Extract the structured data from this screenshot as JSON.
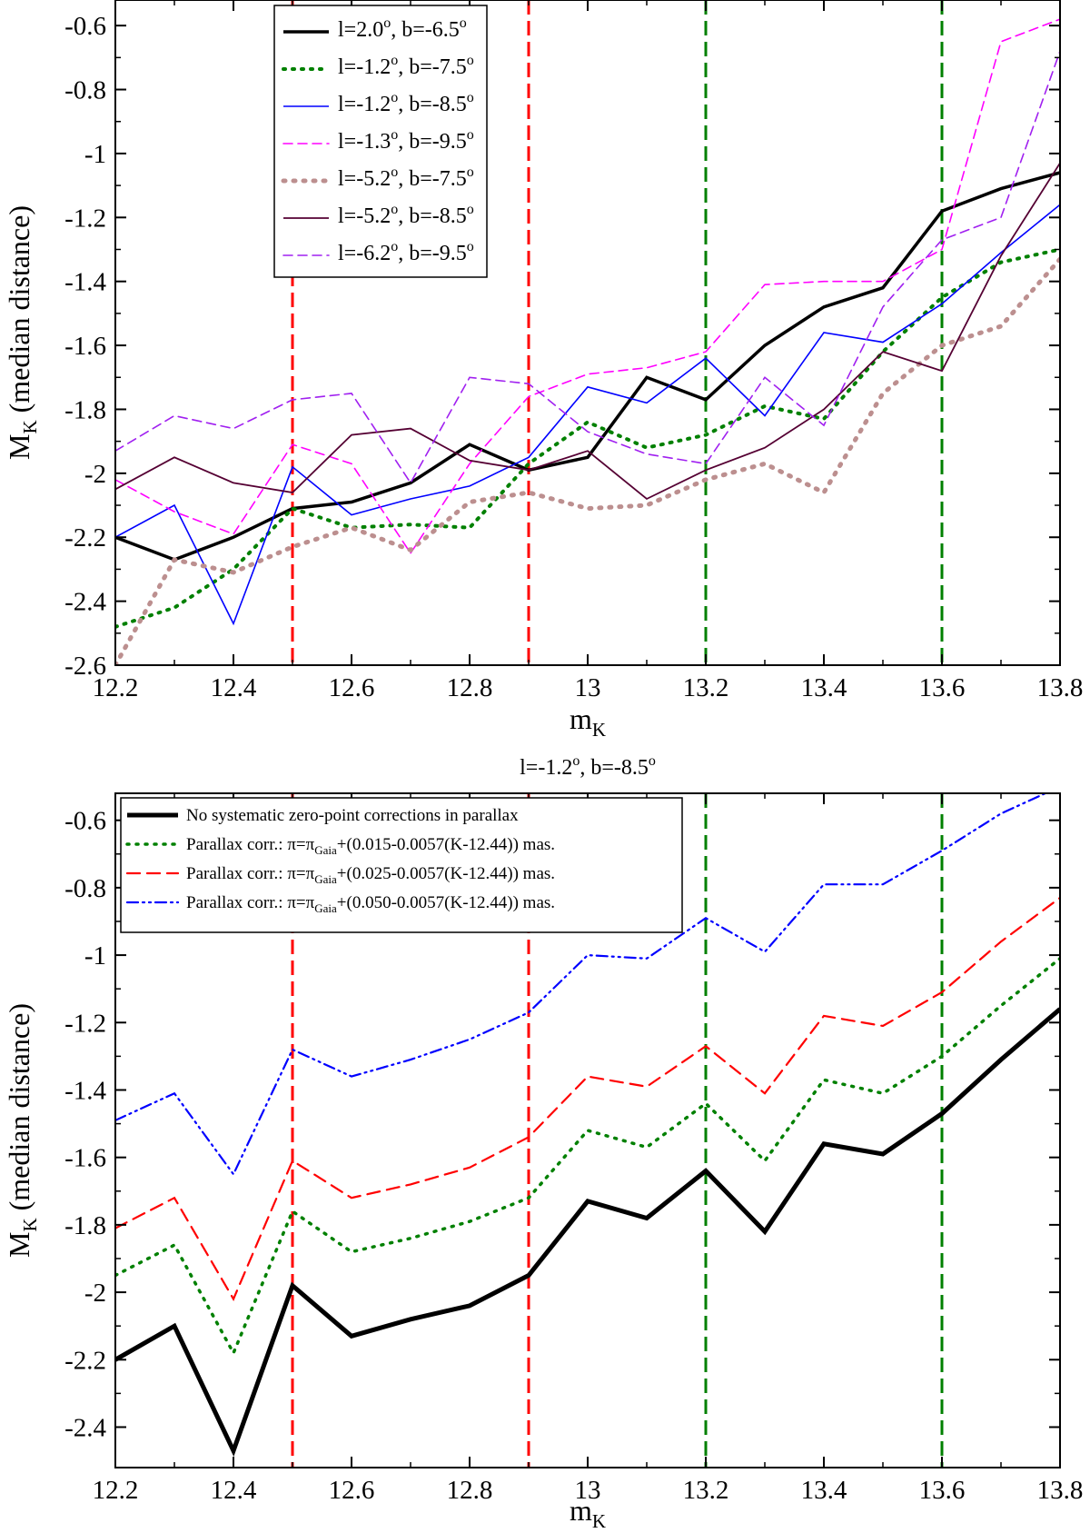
{
  "panels": [
    {
      "title": "",
      "xlabel": {
        "main": "m",
        "sub": "K"
      },
      "ylabel": {
        "main": "M",
        "sub": "K",
        "rest": " (median distance)"
      },
      "xlim": [
        12.2,
        13.8
      ],
      "ylim": [
        -2.6,
        -0.52
      ],
      "xticks": [
        "12.2",
        "12.4",
        "12.6",
        "12.8",
        "13",
        "13.2",
        "13.4",
        "13.6",
        "13.8"
      ],
      "yticks": [
        "-2.6",
        "-2.4",
        "-2.2",
        "-2",
        "-1.8",
        "-1.6",
        "-1.4",
        "-1.2",
        "-1",
        "-0.8",
        "-0.6"
      ],
      "vlines": [
        {
          "x": 12.5,
          "color": "#ff0000"
        },
        {
          "x": 12.9,
          "color": "#ff0000"
        },
        {
          "x": 13.2,
          "color": "#008000"
        },
        {
          "x": 13.6,
          "color": "#008000"
        }
      ],
      "legend": [
        {
          "l": "2.0",
          "b": "-6.5"
        },
        {
          "l": "-1.2",
          "b": "-7.5"
        },
        {
          "l": "-1.2",
          "b": "-8.5"
        },
        {
          "l": "-1.3",
          "b": "-9.5"
        },
        {
          "l": "-5.2",
          "b": "-7.5"
        },
        {
          "l": "-5.2",
          "b": "-8.5"
        },
        {
          "l": "-6.2",
          "b": "-9.5"
        }
      ],
      "series_styles": [
        {
          "color": "#000000",
          "width": 3.5,
          "dash": ""
        },
        {
          "color": "#008000",
          "width": 4,
          "dash": "2,8"
        },
        {
          "color": "#0000ff",
          "width": 1.6,
          "dash": ""
        },
        {
          "color": "#ff00ff",
          "width": 1.6,
          "dash": "10,6"
        },
        {
          "color": "#bc8f8f",
          "width": 5,
          "dash": "2,9"
        },
        {
          "color": "#550033",
          "width": 1.8,
          "dash": ""
        },
        {
          "color": "#a020f0",
          "width": 1.6,
          "dash": "10,6"
        }
      ]
    },
    {
      "title": {
        "l": "-1.2",
        "b": "-8.5"
      },
      "xlabel": {
        "main": "m",
        "sub": "K"
      },
      "ylabel": {
        "main": "M",
        "sub": "K",
        "rest": " (median distance)"
      },
      "xlim": [
        12.2,
        13.8
      ],
      "ylim": [
        -2.52,
        -0.52
      ],
      "xticks": [
        "12.2",
        "12.4",
        "12.6",
        "12.8",
        "13",
        "13.2",
        "13.4",
        "13.6",
        "13.8"
      ],
      "yticks": [
        "-2.4",
        "-2.2",
        "-2",
        "-1.8",
        "-1.6",
        "-1.4",
        "-1.2",
        "-1",
        "-0.8",
        "-0.6"
      ],
      "vlines": [
        {
          "x": 12.5,
          "color": "#ff0000"
        },
        {
          "x": 12.9,
          "color": "#ff0000"
        },
        {
          "x": 13.2,
          "color": "#008000"
        },
        {
          "x": 13.6,
          "color": "#008000"
        }
      ],
      "legend": [
        {
          "text": "No systematic zero-point corrections in parallax"
        },
        {
          "pre": "Parallax corr.: π=π",
          "sub": "Gaia",
          "post": "+(0.015-0.0057(K-12.44)) mas."
        },
        {
          "pre": "Parallax corr.: π=π",
          "sub": "Gaia",
          "post": "+(0.025-0.0057(K-12.44)) mas."
        },
        {
          "pre": "Parallax corr.: π=π",
          "sub": "Gaia",
          "post": "+(0.050-0.0057(K-12.44)) mas."
        }
      ],
      "series_styles": [
        {
          "color": "#000000",
          "width": 5,
          "dash": ""
        },
        {
          "color": "#008000",
          "width": 3.5,
          "dash": "2,8"
        },
        {
          "color": "#ff0000",
          "width": 2.2,
          "dash": "14,8"
        },
        {
          "color": "#0000ff",
          "width": 2.2,
          "dash": "12,5,2,5,2,5"
        }
      ]
    }
  ],
  "chart_data": [
    {
      "type": "line",
      "title": "",
      "xlabel": "mK",
      "ylabel": "MK (median distance)",
      "xlim": [
        12.2,
        13.8
      ],
      "ylim": [
        -2.6,
        -0.52
      ],
      "x": [
        12.2,
        12.3,
        12.4,
        12.5,
        12.6,
        12.7,
        12.8,
        12.9,
        13.0,
        13.1,
        13.2,
        13.3,
        13.4,
        13.5,
        13.6,
        13.7,
        13.8
      ],
      "series": [
        {
          "name": "l=2.0o, b=-6.5o",
          "values": [
            -2.2,
            -2.27,
            -2.2,
            -2.11,
            -2.09,
            -2.03,
            -1.91,
            -1.99,
            -1.95,
            -1.7,
            -1.77,
            -1.6,
            -1.48,
            -1.42,
            -1.18,
            -1.11,
            -1.06
          ]
        },
        {
          "name": "l=-1.2o, b=-7.5o",
          "values": [
            -2.48,
            -2.42,
            -2.3,
            -2.11,
            -2.17,
            -2.16,
            -2.17,
            -1.97,
            -1.84,
            -1.92,
            -1.88,
            -1.79,
            -1.83,
            -1.62,
            -1.45,
            -1.34,
            -1.3
          ]
        },
        {
          "name": "l=-1.2o, b=-8.5o",
          "values": [
            -2.2,
            -2.1,
            -2.47,
            -1.98,
            -2.13,
            -2.08,
            -2.04,
            -1.95,
            -1.73,
            -1.78,
            -1.64,
            -1.82,
            -1.56,
            -1.59,
            -1.47,
            -1.31,
            -1.16
          ]
        },
        {
          "name": "l=-1.3o, b=-9.5o",
          "values": [
            -2.02,
            -2.12,
            -2.19,
            -1.91,
            -1.97,
            -2.25,
            -1.97,
            -1.76,
            -1.69,
            -1.67,
            -1.62,
            -1.41,
            -1.4,
            -1.4,
            -1.3,
            -0.65,
            -0.58
          ]
        },
        {
          "name": "l=-5.2o, b=-7.5o",
          "values": [
            -2.6,
            -2.27,
            -2.31,
            -2.23,
            -2.17,
            -2.24,
            -2.09,
            -2.06,
            -2.11,
            -2.1,
            -2.02,
            -1.97,
            -2.06,
            -1.75,
            -1.6,
            -1.54,
            -1.33
          ]
        },
        {
          "name": "l=-5.2o, b=-8.5o",
          "values": [
            -2.05,
            -1.95,
            -2.03,
            -2.06,
            -1.88,
            -1.86,
            -1.96,
            -1.99,
            -1.93,
            -2.08,
            -1.99,
            -1.92,
            -1.8,
            -1.62,
            -1.68,
            -1.32,
            -1.03
          ]
        },
        {
          "name": "l=-6.2o, b=-9.5o",
          "values": [
            -1.93,
            -1.82,
            -1.86,
            -1.77,
            -1.75,
            -2.03,
            -1.7,
            -1.72,
            -1.87,
            -1.94,
            -1.97,
            -1.7,
            -1.85,
            -1.48,
            -1.27,
            -1.2,
            -0.68
          ]
        }
      ],
      "vertical_lines": [
        12.5,
        12.9,
        13.2,
        13.6
      ],
      "legend_position": "top-left"
    },
    {
      "type": "line",
      "title": "l=-1.2o, b=-8.5o",
      "xlabel": "mK",
      "ylabel": "MK (median distance)",
      "xlim": [
        12.2,
        13.8
      ],
      "ylim": [
        -2.52,
        -0.52
      ],
      "x": [
        12.2,
        12.3,
        12.4,
        12.5,
        12.6,
        12.7,
        12.8,
        12.9,
        13.0,
        13.1,
        13.2,
        13.3,
        13.4,
        13.5,
        13.6,
        13.7,
        13.8
      ],
      "series": [
        {
          "name": "No systematic zero-point corrections in parallax",
          "values": [
            -2.2,
            -2.1,
            -2.47,
            -1.98,
            -2.13,
            -2.08,
            -2.04,
            -1.95,
            -1.73,
            -1.78,
            -1.64,
            -1.82,
            -1.56,
            -1.59,
            -1.47,
            -1.31,
            -1.16
          ]
        },
        {
          "name": "Parallax corr.: π=πGaia+(0.015-0.0057(K-12.44)) mas.",
          "values": [
            -1.95,
            -1.86,
            -2.18,
            -1.76,
            -1.88,
            -1.84,
            -1.79,
            -1.72,
            -1.52,
            -1.57,
            -1.44,
            -1.61,
            -1.37,
            -1.41,
            -1.3,
            -1.15,
            -1.01
          ]
        },
        {
          "name": "Parallax corr.: π=πGaia+(0.025-0.0057(K-12.44)) mas.",
          "values": [
            -1.81,
            -1.72,
            -2.02,
            -1.61,
            -1.72,
            -1.68,
            -1.63,
            -1.54,
            -1.36,
            -1.39,
            -1.27,
            -1.41,
            -1.18,
            -1.21,
            -1.11,
            -0.96,
            -0.83
          ]
        },
        {
          "name": "Parallax corr.: π=πGaia+(0.050-0.0057(K-12.44)) mas.",
          "values": [
            -1.49,
            -1.41,
            -1.65,
            -1.28,
            -1.36,
            -1.31,
            -1.25,
            -1.17,
            -1.0,
            -1.01,
            -0.89,
            -0.99,
            -0.79,
            -0.79,
            -0.69,
            -0.58,
            -0.5
          ]
        }
      ],
      "vertical_lines": [
        12.5,
        12.9,
        13.2,
        13.6
      ],
      "legend_position": "top-left"
    }
  ]
}
